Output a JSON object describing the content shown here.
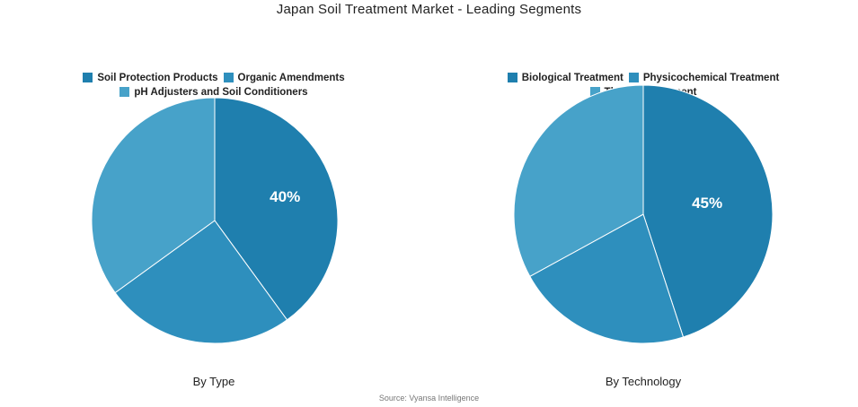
{
  "title": "Japan Soil Treatment Market - Leading Segments",
  "source": "Source: Vyansa Intelligence",
  "chart_data": [
    {
      "type": "pie",
      "caption": "By Type",
      "legend_placement": "top",
      "slices": [
        {
          "name": "Soil Protection Products",
          "value": 40,
          "label": "40%",
          "color": "#1f7fae"
        },
        {
          "name": "Organic Amendments",
          "value": 25,
          "label": "",
          "color": "#2e8fbd"
        },
        {
          "name": "pH Adjusters and Soil Conditioners",
          "value": 35,
          "label": "",
          "color": "#47a2c9"
        }
      ]
    },
    {
      "type": "pie",
      "caption": "By Technology",
      "legend_placement": "top",
      "slices": [
        {
          "name": "Biological Treatment",
          "value": 45,
          "label": "45%",
          "color": "#1f7fae"
        },
        {
          "name": "Physicochemical Treatment",
          "value": 22,
          "label": "",
          "color": "#2e8fbd"
        },
        {
          "name": "Thermal Treatment",
          "value": 33,
          "label": "",
          "color": "#47a2c9"
        }
      ]
    }
  ]
}
